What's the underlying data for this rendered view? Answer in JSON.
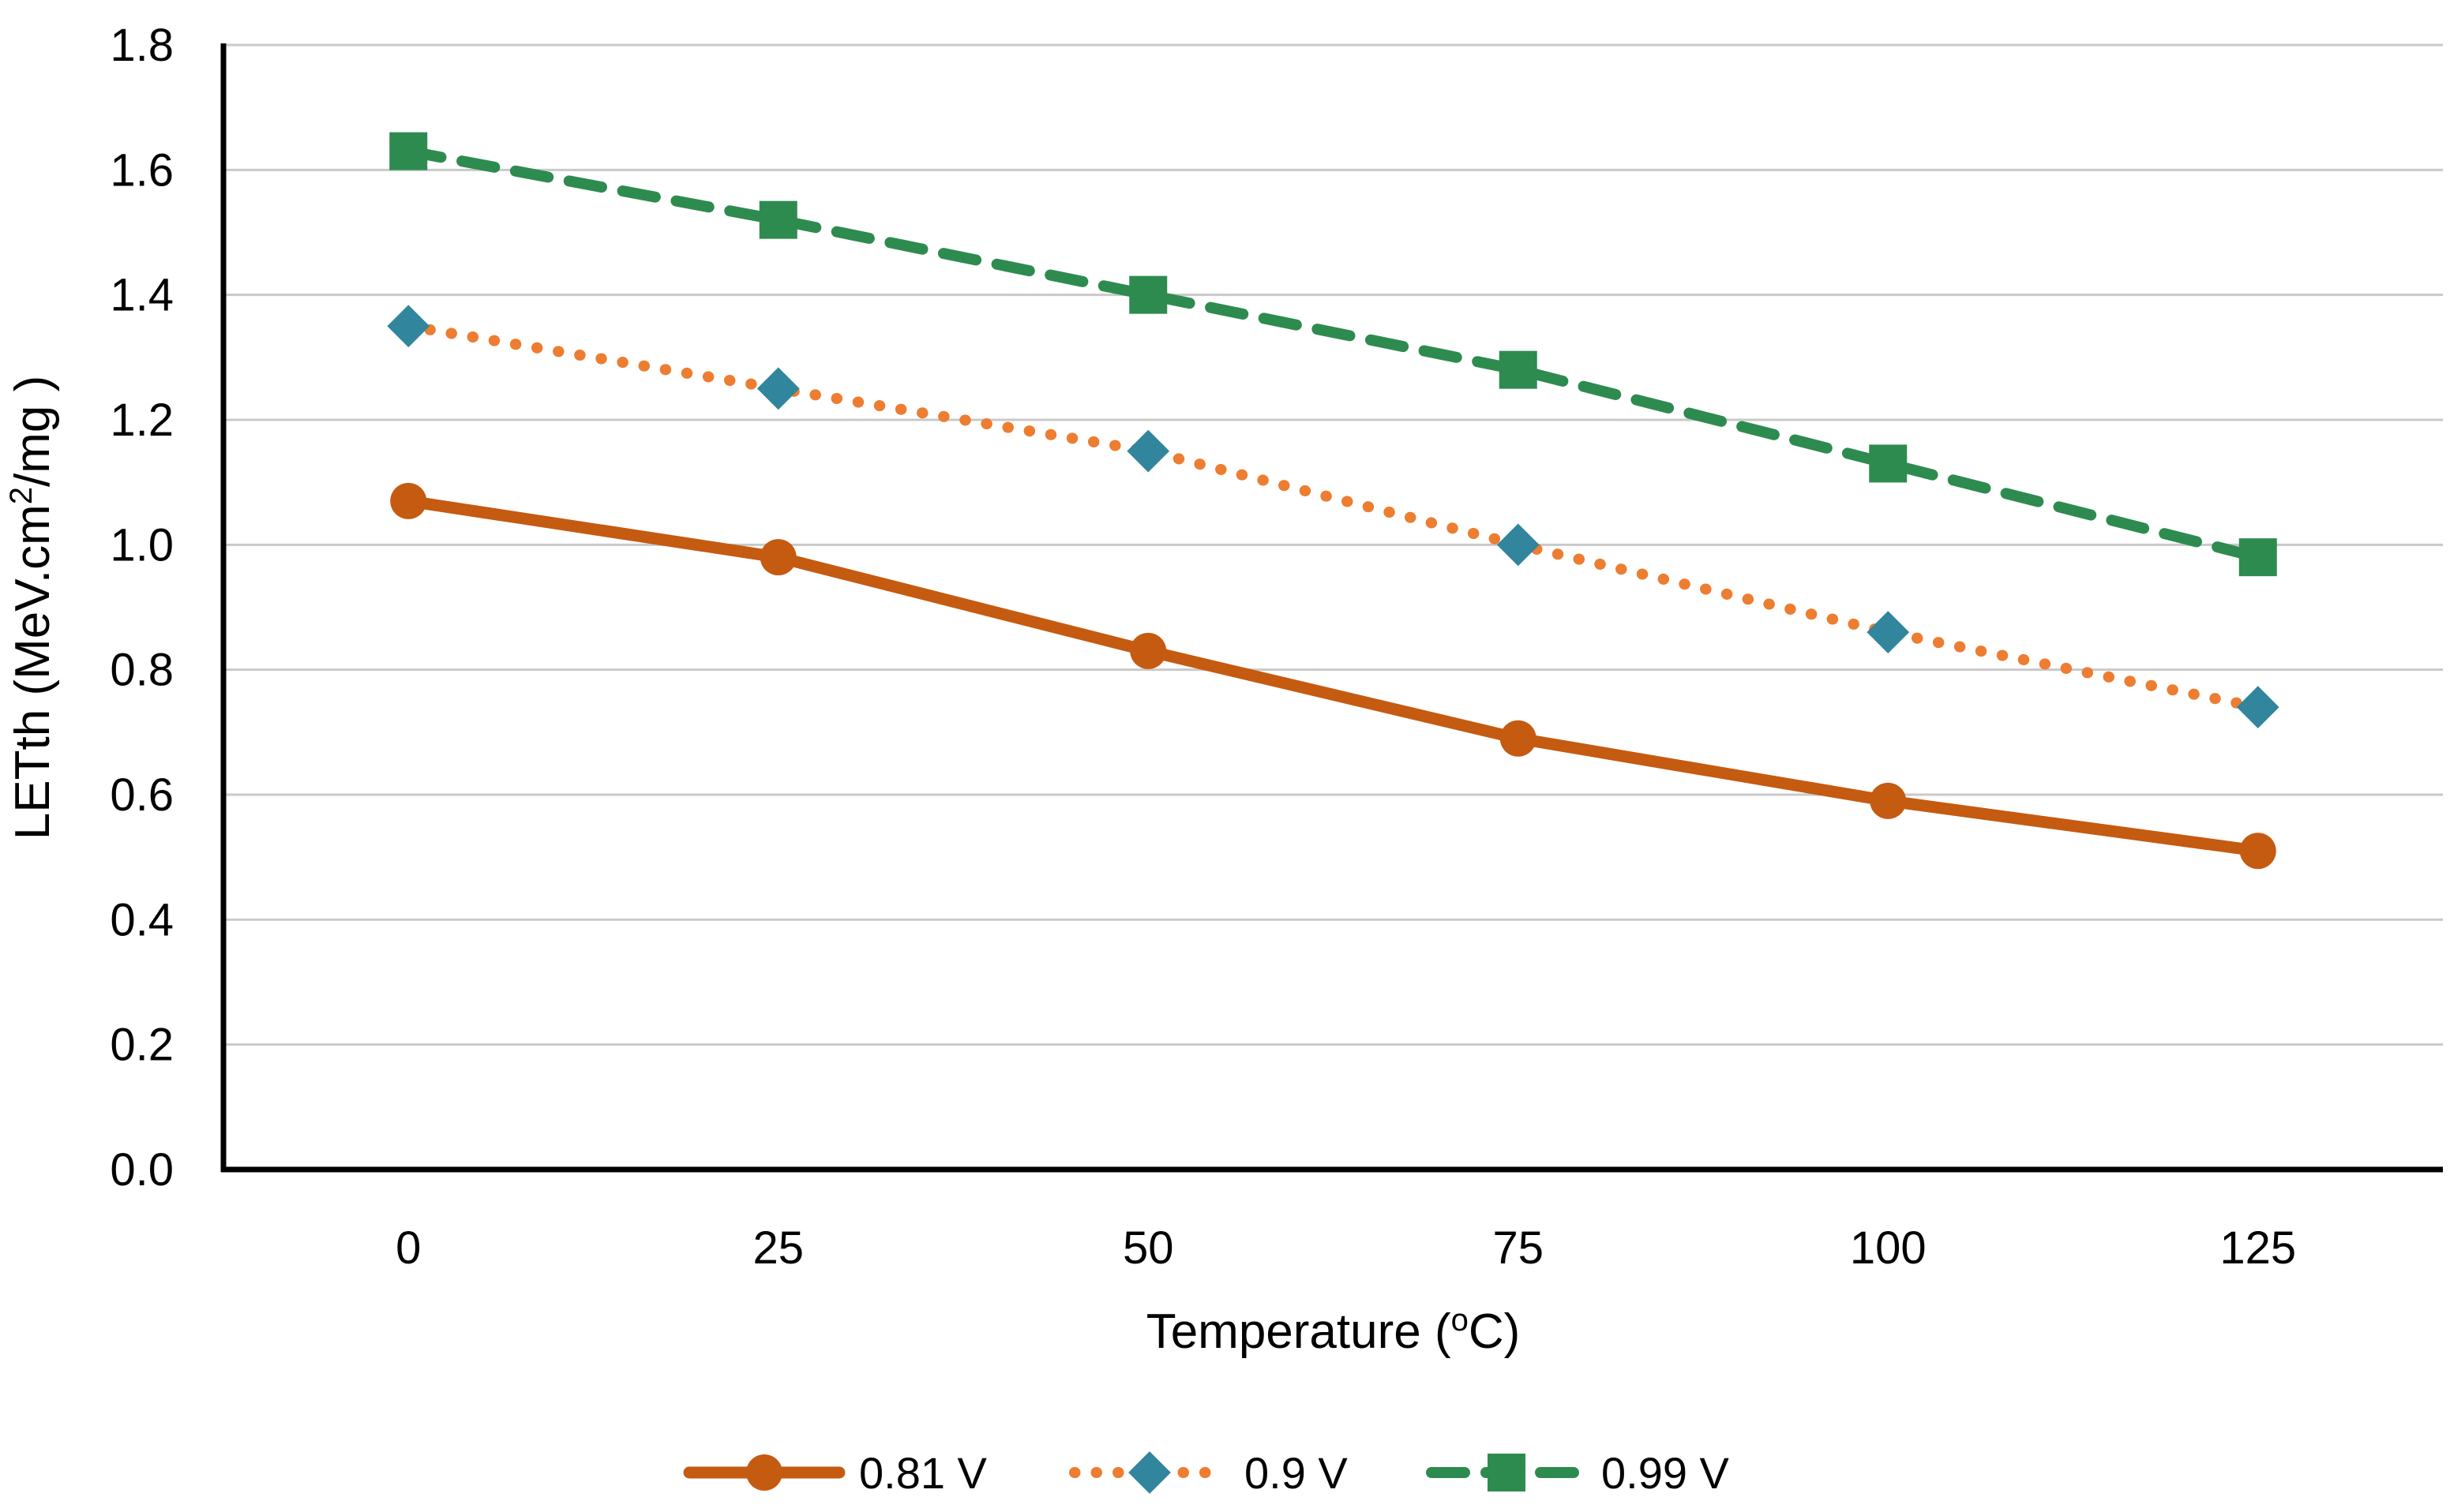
{
  "chart_data": {
    "type": "line",
    "title": "",
    "categories": [
      0,
      25,
      50,
      75,
      100,
      125
    ],
    "x_tick_labels": [
      "0",
      "25",
      "50",
      "75",
      "100",
      "125"
    ],
    "xlabel_parts": {
      "prefix": "Temperature (",
      "sup": "o",
      "suffix": "C)"
    },
    "ylabel_parts": {
      "prefix": "LETth (MeV.cm",
      "sup": "2",
      "suffix": "/mg )"
    },
    "y_ticks": [
      0.0,
      0.2,
      0.4,
      0.6,
      0.8,
      1.0,
      1.2,
      1.4,
      1.6,
      1.8
    ],
    "ylim": [
      0,
      1.8
    ],
    "grid": true,
    "legend_position": "bottom",
    "series": [
      {
        "name": "0.81 V",
        "values": [
          1.07,
          0.98,
          0.83,
          0.69,
          0.59,
          0.51
        ],
        "line_style": "solid",
        "line_color": "#C55A11",
        "marker": "circle",
        "marker_color": "#C55A11"
      },
      {
        "name": "0.9 V",
        "values": [
          1.35,
          1.25,
          1.15,
          1.0,
          0.86,
          0.74
        ],
        "line_style": "dotted",
        "line_color": "#ED7D31",
        "marker": "diamond",
        "marker_color": "#31859C"
      },
      {
        "name": "0.99 V",
        "values": [
          1.63,
          1.52,
          1.4,
          1.28,
          1.13,
          0.98
        ],
        "line_style": "dashed",
        "line_color": "#2E8B4F",
        "marker": "square",
        "marker_color": "#2E8B4F"
      }
    ],
    "colors": {
      "gridline": "#C9C9C9",
      "axis": "#000000",
      "text": "#000000"
    }
  }
}
